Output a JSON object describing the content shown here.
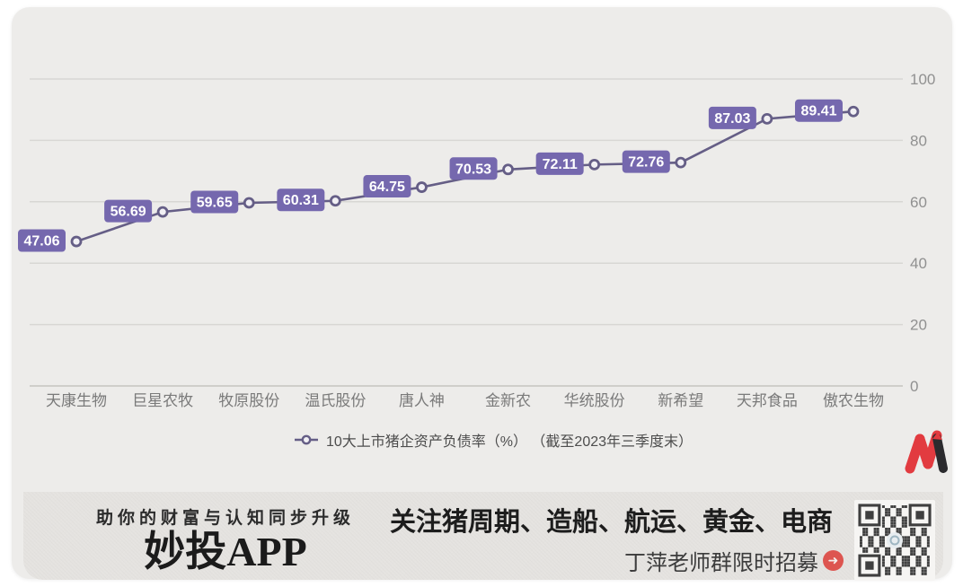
{
  "chart_data": {
    "type": "line",
    "categories": [
      "天康生物",
      "巨星农牧",
      "牧原股份",
      "温氏股份",
      "唐人神",
      "金新农",
      "华统股份",
      "新希望",
      "天邦食品",
      "傲农生物"
    ],
    "values": [
      47.06,
      56.69,
      59.65,
      60.31,
      64.75,
      70.53,
      72.11,
      72.76,
      87.03,
      89.41
    ],
    "legend": "10大上市猪企资产负债率（%） （截至2023年三季度末）",
    "ylim": [
      0,
      100
    ],
    "yticks": [
      0,
      20,
      40,
      60,
      80,
      100
    ],
    "grid": true,
    "legend_position": "bottom",
    "line_color": "#655e86",
    "marker_fill": "#f1f0f4",
    "label_box_color": "#7568ae",
    "label_text_color": "#ffffff"
  },
  "banner": {
    "tagline": "助你的财富与认知同步升级",
    "app_name": "妙投APP",
    "headline": "关注猪周期、造船、航运、黄金、电商",
    "recruit_text": "丁萍老师群限时招募",
    "arrow_glyph": "➜"
  },
  "logo": {
    "name": "妙投 M logo",
    "primary_color": "#e23b40",
    "secondary_color": "#2b2b2e"
  },
  "colors": {
    "card_bg": "#edecea",
    "banner_bg": "#e5e3e0",
    "gridline": "#d8d7d4",
    "axis_zero_line": "#cfceca"
  }
}
